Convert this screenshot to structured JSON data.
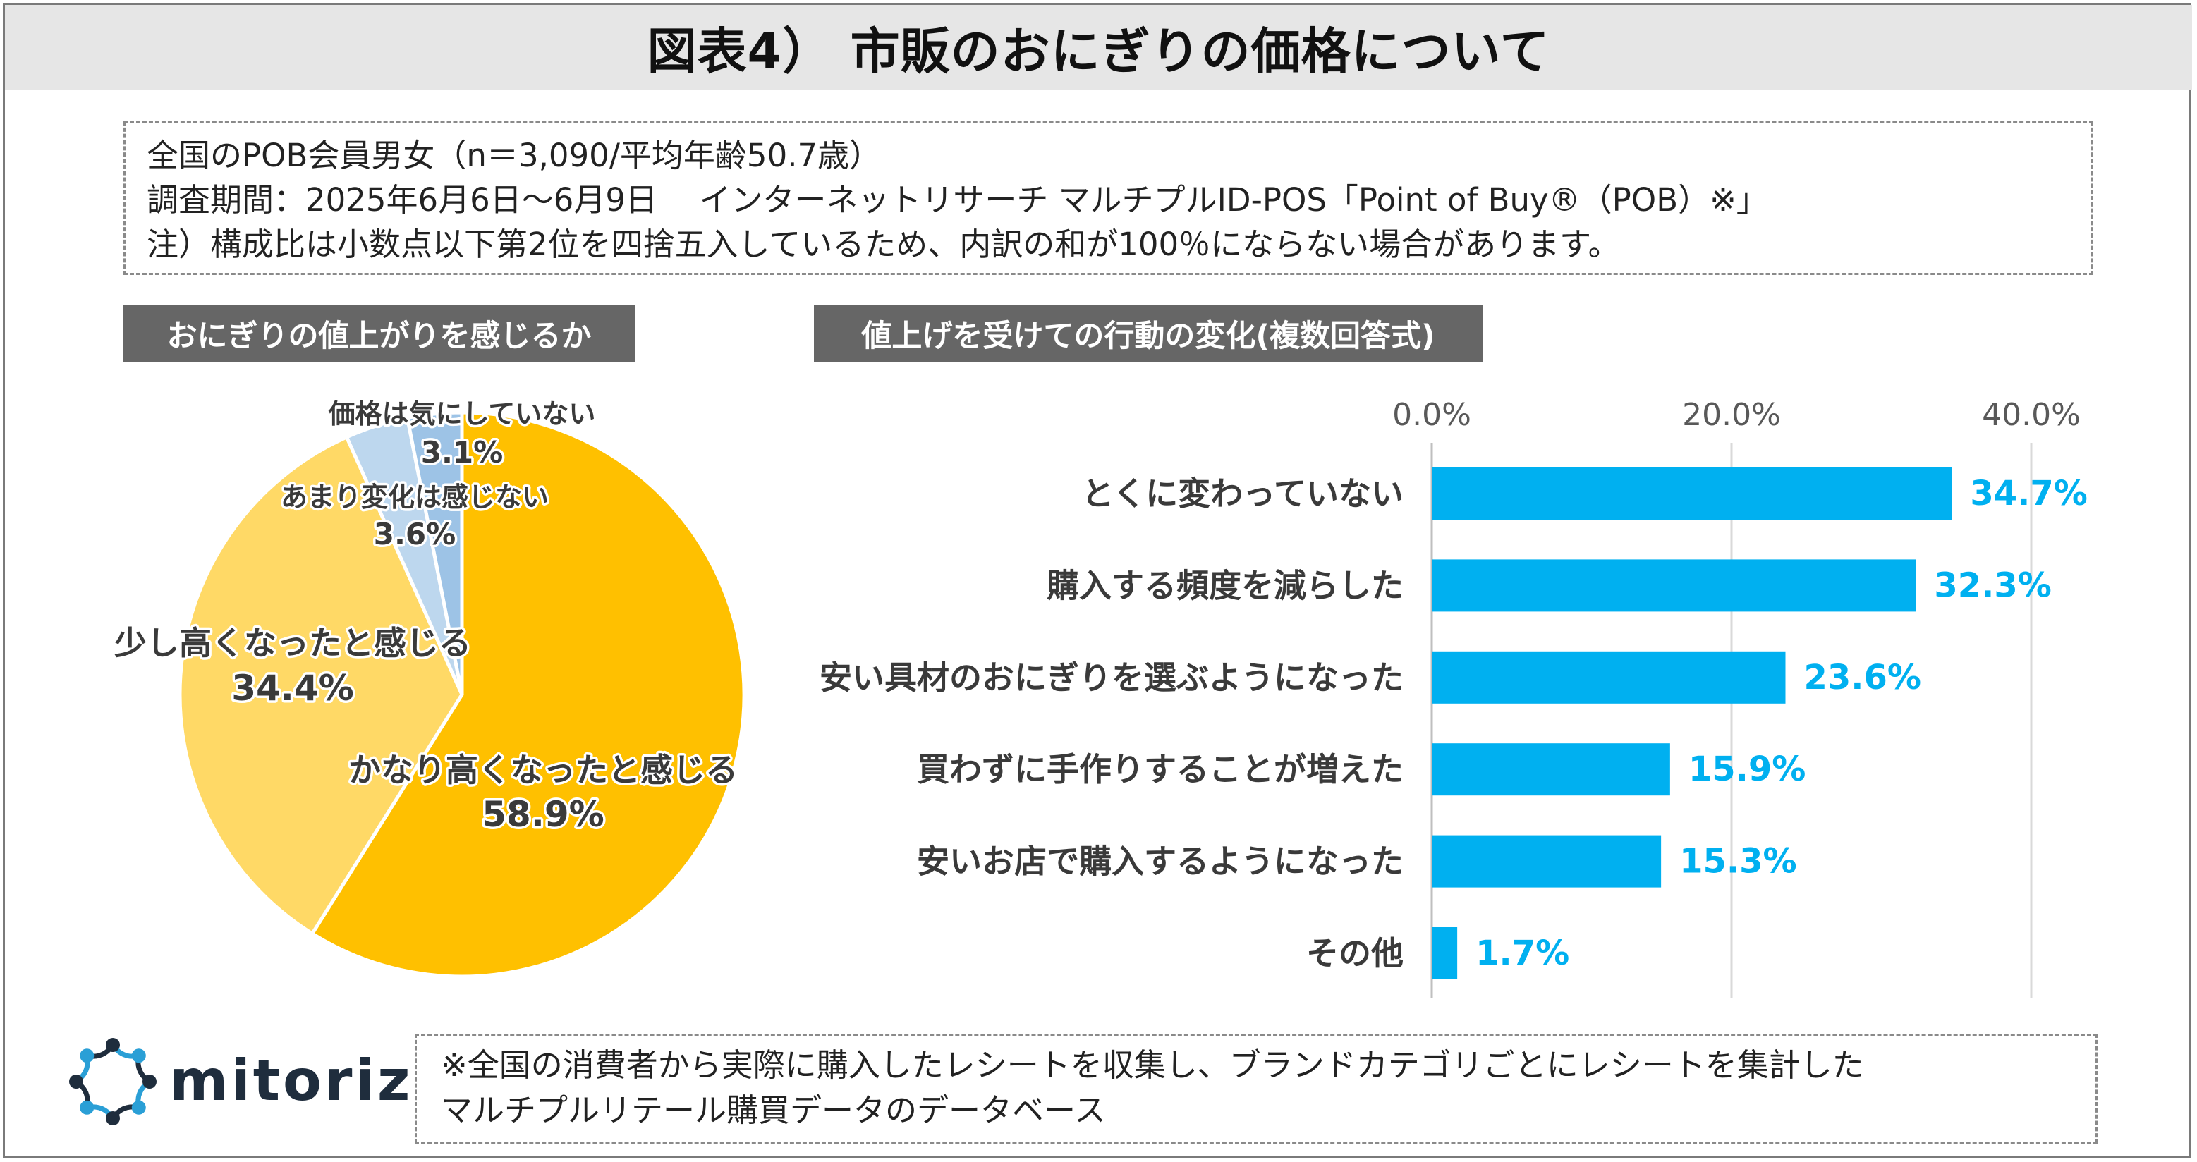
{
  "title": "図表4） 市販のおにぎりの価格について",
  "survey": {
    "line1": "全国のPOB会員男女（n＝3,090/平均年齢50.7歳）",
    "line2": "調査期間：2025年6月6日～6月9日　 インターネットリサーチ マルチプルID-POS「Point of Buy®（POB）※」",
    "line3": "注）構成比は小数点以下第2位を四捨五入しているため、内訳の和が100％にならない場合があります。"
  },
  "chart_data": [
    {
      "type": "pie",
      "title": "おにぎりの値上がりを感じるか",
      "slices": [
        {
          "label": "かなり高くなったと感じる",
          "value": 58.9,
          "value_label": "58.9%",
          "color": "#ffc000"
        },
        {
          "label": "少し高くなったと感じる",
          "value": 34.4,
          "value_label": "34.4%",
          "color": "#ffd966"
        },
        {
          "label": "あまり変化は感じない",
          "value": 3.6,
          "value_label": "3.6%",
          "color": "#bdd7ee"
        },
        {
          "label": "価格は気にしていない",
          "value": 3.1,
          "value_label": "3.1%",
          "color": "#9dc3e6"
        }
      ]
    },
    {
      "type": "bar",
      "orientation": "horizontal",
      "title": "値上げを受けての行動の変化(複数回答式)",
      "categories": [
        "とくに変わっていない",
        "購入する頻度を減らした",
        "安い具材のおにぎりを選ぶようになった",
        "買わずに手作りすることが増えた",
        "安いお店で購入するようになった",
        "その他"
      ],
      "values": [
        34.7,
        32.3,
        23.6,
        15.9,
        15.3,
        1.7
      ],
      "value_labels": [
        "34.7%",
        "32.3%",
        "23.6%",
        "15.9%",
        "15.3%",
        "1.7%"
      ],
      "xlim": [
        0,
        40
      ],
      "x_ticks": [
        "0.0%",
        "20.0%",
        "40.0%"
      ],
      "x_tick_values": [
        0,
        20,
        40
      ],
      "grid": true,
      "bar_color": "#00b0f0",
      "label_color": "#00b0f0"
    }
  ],
  "footnote": {
    "line1": "※全国の消費者から実際に購入したレシートを収集し、ブランドカテゴリごとにレシートを集計した",
    "line2": "マルチプルリテール購買データのデータベース"
  },
  "logo": {
    "text": "mitoriz",
    "colors": [
      "#1f2d3d",
      "#2a9fd6"
    ]
  }
}
